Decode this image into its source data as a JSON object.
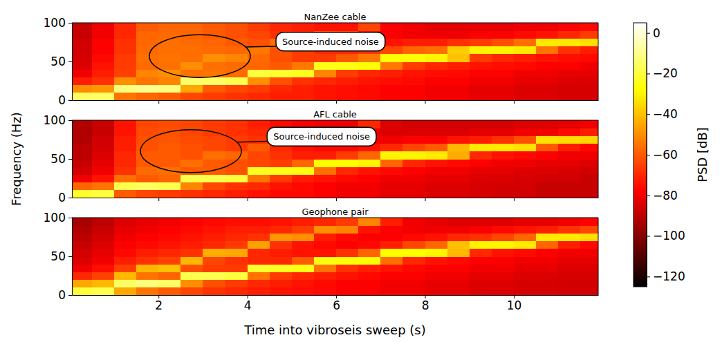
{
  "chart_data": [
    {
      "type": "heatmap",
      "title": "NanZee cable",
      "xlim": [
        0.05,
        11.9
      ],
      "xticks": [
        2,
        4,
        6,
        8,
        10
      ],
      "ylim": [
        0,
        100
      ],
      "yticks": [
        0,
        50,
        100
      ],
      "tick_labels": "y",
      "x_edges": [
        0,
        0.5,
        1,
        1.5,
        2,
        2.5,
        3,
        3.5,
        4,
        4.5,
        5,
        5.5,
        6,
        6.5,
        7,
        7.5,
        8,
        8.5,
        9,
        9.5,
        10,
        10.5,
        11,
        11.5,
        12
      ],
      "y_edges": [
        0,
        10,
        20,
        30,
        40,
        50,
        60,
        70,
        80,
        90,
        100
      ],
      "z": [
        [
          -15,
          -15,
          -55,
          -58,
          -60,
          -64,
          -66,
          -68,
          -70,
          -72,
          -72,
          -74,
          -75,
          -76,
          -78,
          -78,
          -80,
          -80,
          -82,
          -82,
          -84,
          -84,
          -85,
          -85
        ],
        [
          -50,
          -48,
          -12,
          -10,
          -12,
          -45,
          -60,
          -64,
          -66,
          -70,
          -72,
          -74,
          -75,
          -76,
          -78,
          -78,
          -80,
          -80,
          -82,
          -82,
          -84,
          -84,
          -85,
          -85
        ],
        [
          -72,
          -68,
          -50,
          -55,
          -52,
          -14,
          -15,
          -18,
          -50,
          -62,
          -68,
          -70,
          -72,
          -74,
          -75,
          -76,
          -78,
          -78,
          -80,
          -80,
          -82,
          -82,
          -84,
          -84
        ],
        [
          -80,
          -72,
          -65,
          -52,
          -50,
          -56,
          -55,
          -57,
          -20,
          -22,
          -24,
          -52,
          -66,
          -70,
          -72,
          -74,
          -75,
          -76,
          -78,
          -78,
          -80,
          -80,
          -82,
          -82
        ],
        [
          -84,
          -74,
          -66,
          -57,
          -56,
          -50,
          -56,
          -57,
          -58,
          -60,
          -54,
          -25,
          -26,
          -28,
          -54,
          -66,
          -70,
          -72,
          -74,
          -75,
          -76,
          -78,
          -78,
          -80
        ],
        [
          -85,
          -76,
          -66,
          -56,
          -55,
          -56,
          -50,
          -52,
          -57,
          -62,
          -66,
          -66,
          -60,
          -54,
          -28,
          -28,
          -30,
          -40,
          -66,
          -70,
          -72,
          -74,
          -75,
          -76
        ],
        [
          -86,
          -78,
          -68,
          -57,
          -56,
          -56,
          -57,
          -58,
          -54,
          -62,
          -66,
          -70,
          -70,
          -68,
          -64,
          -58,
          -56,
          -38,
          -30,
          -30,
          -32,
          -55,
          -68,
          -72
        ],
        [
          -86,
          -78,
          -68,
          -58,
          -56,
          -57,
          -58,
          -60,
          -62,
          -56,
          -58,
          -70,
          -72,
          -74,
          -74,
          -72,
          -72,
          -68,
          -66,
          -62,
          -56,
          -32,
          -32,
          -34
        ],
        [
          -88,
          -80,
          -70,
          -58,
          -57,
          -58,
          -60,
          -62,
          -64,
          -68,
          -70,
          -60,
          -62,
          -76,
          -78,
          -80,
          -80,
          -80,
          -78,
          -78,
          -76,
          -74,
          -70,
          -66
        ],
        [
          -88,
          -80,
          -70,
          -60,
          -58,
          -58,
          -60,
          -62,
          -66,
          -70,
          -72,
          -74,
          -74,
          -64,
          -78,
          -80,
          -82,
          -82,
          -82,
          -82,
          -80,
          -80,
          -78,
          -76
        ]
      ],
      "zlim": [
        -125,
        5
      ],
      "zticks": [
        0,
        {
          "value": -20,
          "label": "−20"
        },
        {
          "value": -40,
          "label": "−40"
        },
        {
          "value": -60,
          "label": "−60"
        },
        {
          "value": -80,
          "label": "−80"
        },
        {
          "value": -100,
          "label": "−100"
        },
        {
          "value": -120,
          "label": "−120"
        }
      ],
      "colorbar_label": "PSD [dB]",
      "annotations": [
        {
          "text": "Source-induced noise",
          "x": 2.93,
          "y": 57
        }
      ]
    },
    {
      "type": "heatmap",
      "title": "AFL cable",
      "xlim": [
        0.05,
        11.9
      ],
      "xticks": [
        2,
        4,
        6,
        8,
        10
      ],
      "ylim": [
        0,
        100
      ],
      "yticks": [
        0,
        50,
        100
      ],
      "tick_labels": "y",
      "x_edges": [
        0,
        0.5,
        1,
        1.5,
        2,
        2.5,
        3,
        3.5,
        4,
        4.5,
        5,
        5.5,
        6,
        6.5,
        7,
        7.5,
        8,
        8.5,
        9,
        9.5,
        10,
        10.5,
        11,
        11.5,
        12
      ],
      "y_edges": [
        0,
        10,
        20,
        30,
        40,
        50,
        60,
        70,
        80,
        90,
        100
      ],
      "z": [
        [
          -22,
          -20,
          -60,
          -64,
          -66,
          -68,
          -70,
          -72,
          -74,
          -76,
          -76,
          -78,
          -80,
          -80,
          -82,
          -82,
          -84,
          -84,
          -85,
          -86,
          -86,
          -88,
          -88,
          -88
        ],
        [
          -58,
          -55,
          -18,
          -16,
          -18,
          -52,
          -64,
          -68,
          -70,
          -74,
          -76,
          -78,
          -80,
          -80,
          -82,
          -82,
          -84,
          -84,
          -85,
          -86,
          -86,
          -88,
          -88,
          -88
        ],
        [
          -80,
          -74,
          -56,
          -60,
          -58,
          -18,
          -18,
          -20,
          -55,
          -66,
          -72,
          -74,
          -76,
          -78,
          -80,
          -80,
          -82,
          -82,
          -84,
          -84,
          -85,
          -86,
          -86,
          -88
        ],
        [
          -86,
          -80,
          -68,
          -57,
          -56,
          -60,
          -60,
          -62,
          -24,
          -25,
          -26,
          -56,
          -70,
          -74,
          -76,
          -78,
          -80,
          -80,
          -82,
          -82,
          -84,
          -84,
          -85,
          -86
        ],
        [
          -88,
          -82,
          -70,
          -60,
          -60,
          -56,
          -60,
          -62,
          -64,
          -66,
          -58,
          -28,
          -28,
          -30,
          -58,
          -70,
          -74,
          -76,
          -78,
          -80,
          -80,
          -82,
          -82,
          -84
        ],
        [
          -90,
          -84,
          -70,
          -60,
          -60,
          -62,
          -56,
          -58,
          -64,
          -68,
          -72,
          -72,
          -66,
          -58,
          -30,
          -30,
          -32,
          -44,
          -70,
          -74,
          -76,
          -78,
          -80,
          -80
        ],
        [
          -90,
          -86,
          -72,
          -62,
          -60,
          -62,
          -64,
          -66,
          -60,
          -70,
          -74,
          -76,
          -76,
          -74,
          -70,
          -64,
          -60,
          -42,
          -32,
          -32,
          -34,
          -60,
          -72,
          -76
        ],
        [
          -92,
          -86,
          -72,
          -62,
          -61,
          -63,
          -64,
          -66,
          -68,
          -62,
          -64,
          -76,
          -78,
          -80,
          -80,
          -78,
          -78,
          -74,
          -72,
          -68,
          -62,
          -34,
          -35,
          -36
        ],
        [
          -92,
          -88,
          -74,
          -63,
          -62,
          -64,
          -66,
          -68,
          -70,
          -74,
          -76,
          -66,
          -68,
          -82,
          -84,
          -84,
          -84,
          -84,
          -82,
          -82,
          -80,
          -80,
          -76,
          -72
        ],
        [
          -92,
          -88,
          -74,
          -64,
          -63,
          -64,
          -66,
          -68,
          -72,
          -76,
          -78,
          -80,
          -80,
          -70,
          -84,
          -86,
          -86,
          -86,
          -86,
          -86,
          -84,
          -84,
          -82,
          -80
        ]
      ],
      "zlim": [
        -125,
        5
      ],
      "y_label": "Frequency (Hz)",
      "annotations": [
        {
          "text": "Source-induced noise",
          "x": 2.73,
          "y": 60
        }
      ]
    },
    {
      "type": "heatmap",
      "title": "Geophone pair",
      "xlim": [
        0.05,
        11.9
      ],
      "xticks": [
        2,
        4,
        6,
        8,
        10
      ],
      "ylim": [
        0,
        100
      ],
      "yticks": [
        0,
        50,
        100
      ],
      "x_edges": [
        0,
        0.5,
        1,
        1.5,
        2,
        2.5,
        3,
        3.5,
        4,
        4.5,
        5,
        5.5,
        6,
        6.5,
        7,
        7.5,
        8,
        8.5,
        9,
        9.5,
        10,
        10.5,
        11,
        11.5,
        12
      ],
      "y_edges": [
        0,
        10,
        20,
        30,
        40,
        50,
        60,
        70,
        80,
        90,
        100
      ],
      "z": [
        [
          -20,
          -18,
          -45,
          -55,
          -60,
          -64,
          -68,
          -70,
          -72,
          -74,
          -75,
          -76,
          -78,
          -78,
          -80,
          -80,
          -82,
          -82,
          -84,
          -84,
          -85,
          -85,
          -86,
          -86
        ],
        [
          -45,
          -42,
          -15,
          -12,
          -15,
          -50,
          -62,
          -66,
          -70,
          -72,
          -74,
          -76,
          -78,
          -78,
          -80,
          -80,
          -82,
          -82,
          -84,
          -84,
          -85,
          -85,
          -86,
          -86
        ],
        [
          -70,
          -65,
          -42,
          -55,
          -58,
          -18,
          -18,
          -20,
          -55,
          -66,
          -70,
          -72,
          -74,
          -76,
          -78,
          -78,
          -80,
          -80,
          -82,
          -82,
          -84,
          -84,
          -85,
          -85
        ],
        [
          -80,
          -75,
          -65,
          -42,
          -40,
          -62,
          -66,
          -66,
          -22,
          -24,
          -25,
          -55,
          -68,
          -72,
          -74,
          -76,
          -78,
          -78,
          -80,
          -80,
          -82,
          -82,
          -84,
          -84
        ],
        [
          -84,
          -80,
          -72,
          -68,
          -65,
          -42,
          -64,
          -68,
          -70,
          -70,
          -60,
          -26,
          -27,
          -28,
          -56,
          -70,
          -74,
          -76,
          -78,
          -78,
          -80,
          -80,
          -82,
          -82
        ],
        [
          -86,
          -82,
          -76,
          -72,
          -70,
          -68,
          -44,
          -45,
          -70,
          -72,
          -74,
          -74,
          -68,
          -58,
          -28,
          -28,
          -30,
          -42,
          -70,
          -74,
          -76,
          -78,
          -80,
          -80
        ],
        [
          -88,
          -84,
          -78,
          -76,
          -74,
          -72,
          -70,
          -66,
          -46,
          -68,
          -74,
          -76,
          -78,
          -76,
          -72,
          -64,
          -58,
          -40,
          -30,
          -30,
          -32,
          -58,
          -72,
          -76
        ],
        [
          -90,
          -86,
          -80,
          -78,
          -76,
          -74,
          -72,
          -70,
          -68,
          -48,
          -50,
          -72,
          -76,
          -78,
          -78,
          -76,
          -74,
          -70,
          -68,
          -64,
          -58,
          -32,
          -32,
          -34
        ],
        [
          -92,
          -88,
          -82,
          -80,
          -78,
          -76,
          -74,
          -72,
          -72,
          -70,
          -66,
          -50,
          -52,
          -74,
          -78,
          -80,
          -80,
          -80,
          -78,
          -76,
          -74,
          -72,
          -68,
          -64
        ],
        [
          -94,
          -90,
          -84,
          -82,
          -80,
          -78,
          -76,
          -75,
          -75,
          -74,
          -72,
          -70,
          -66,
          -52,
          -72,
          -80,
          -82,
          -84,
          -84,
          -84,
          -82,
          -82,
          -80,
          -78
        ]
      ],
      "zlim": [
        -125,
        5
      ],
      "x_label": "Time into vibroseis sweep (s)"
    }
  ]
}
